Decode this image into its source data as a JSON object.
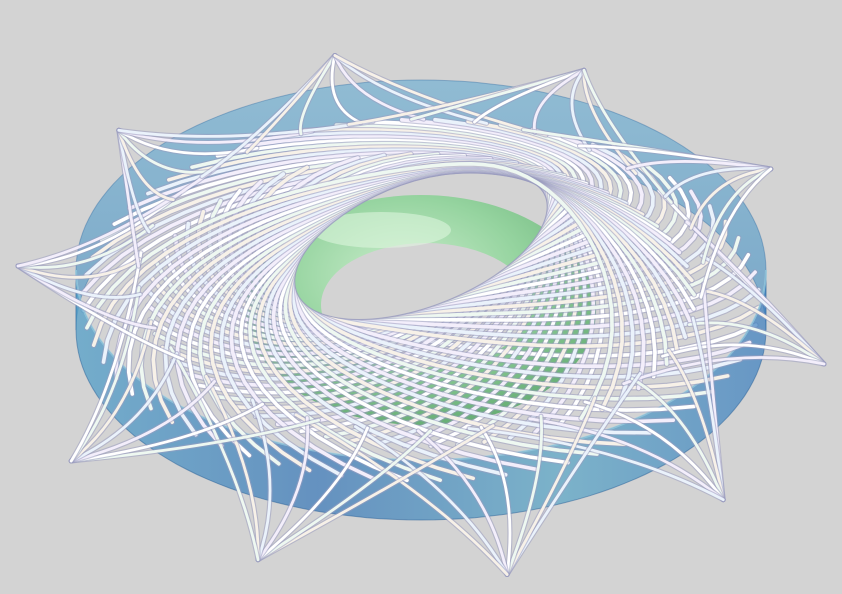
{
  "scene": {
    "description_icon": "torus-field-lines-render",
    "colors": {
      "background": "#d3d3d3",
      "band": "#3f86c2",
      "band_light": "#7fc0d8",
      "inner_torus": "#8fd49a",
      "inner_torus_dark": "#4fae63",
      "field_line": "#f4f2fa"
    },
    "bundle_count": 10,
    "line_count": 64,
    "rotation_deg": 8
  }
}
